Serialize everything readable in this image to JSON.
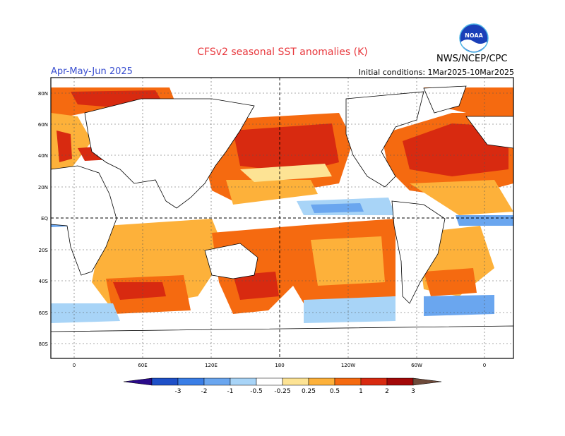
{
  "header": {
    "title": "CFSv2 seasonal SST anomalies (K)",
    "season": "Apr-May-Jun 2025",
    "initial_conditions": "Initial conditions: 1Mar2025-10Mar2025",
    "agency": "NWS/NCEP/CPC",
    "logo_text": "NOAA"
  },
  "axes": {
    "lat_labels": [
      "80N",
      "60N",
      "40N",
      "20N",
      "EQ",
      "20S",
      "40S",
      "60S",
      "80S"
    ],
    "lon_labels": [
      "0",
      "60E",
      "120E",
      "180",
      "120W",
      "60W",
      "0"
    ]
  },
  "colorbar": {
    "ticks": [
      "-3",
      "-2",
      "-1",
      "-0.5",
      "-0.25",
      "0.25",
      "0.5",
      "1",
      "2",
      "3"
    ],
    "colors": [
      "#2a0a8a",
      "#1e50c8",
      "#3a7ee6",
      "#6aa6ef",
      "#a8d4f7",
      "#ffffff",
      "#fde394",
      "#fdb13a",
      "#f56a10",
      "#d82a10",
      "#a30808",
      "#6e4a3a"
    ]
  },
  "map_data": {
    "type": "global SST anomaly map",
    "features": [
      {
        "region": "North Pacific",
        "anomaly": "+1 to +2 K"
      },
      {
        "region": "North Atlantic",
        "anomaly": "+1 to +2 K"
      },
      {
        "region": "Eastern equatorial Pacific",
        "anomaly": "-0.25 to -0.5 K"
      },
      {
        "region": "Southern Ocean (south of Australia)",
        "anomaly": "+0.5 to +2 K"
      },
      {
        "region": "South Atlantic",
        "anomaly": "+0.5 to +1 K"
      }
    ]
  }
}
